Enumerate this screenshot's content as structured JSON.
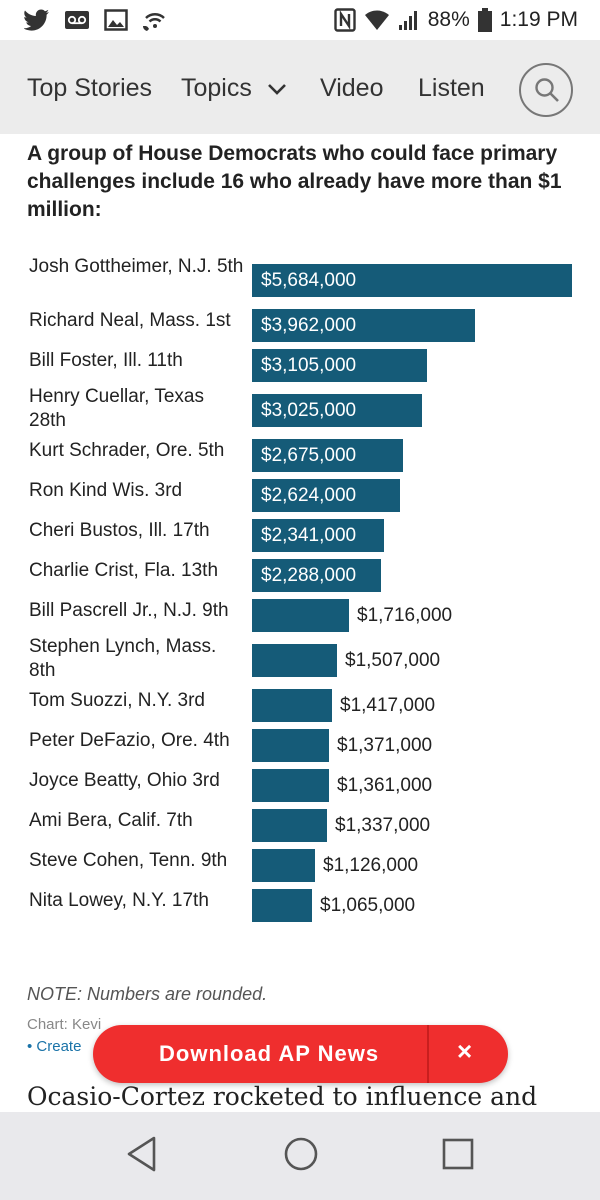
{
  "status_bar": {
    "battery": "88%",
    "time": "1:19 PM"
  },
  "nav": {
    "items": [
      "Top Stories",
      "Topics",
      "Video",
      "Listen"
    ]
  },
  "chart_title": "A group of House Democrats who could face primary challenges include 16 who already have more than $1 million:",
  "chart_data": {
    "type": "bar",
    "orientation": "horizontal",
    "title": "A group of House Democrats who could face primary challenges include 16 who already have more than $1 million:",
    "categories": [
      "Josh Gottheimer, N.J. 5th",
      "Richard Neal, Mass. 1st",
      "Bill Foster, Ill. 11th",
      "Henry Cuellar, Texas 28th",
      "Kurt Schrader, Ore. 5th",
      "Ron Kind Wis. 3rd",
      "Cheri Bustos, Ill. 17th",
      "Charlie Crist, Fla. 13th",
      "Bill Pascrell Jr., N.J. 9th",
      "Stephen Lynch, Mass. 8th",
      "Tom Suozzi, N.Y. 3rd",
      "Peter DeFazio, Ore. 4th",
      "Joyce Beatty, Ohio 3rd",
      "Ami Bera, Calif. 7th",
      "Steve Cohen, Tenn. 9th",
      "Nita Lowey, N.Y. 17th"
    ],
    "values": [
      5684000,
      3962000,
      3105000,
      3025000,
      2675000,
      2624000,
      2341000,
      2288000,
      1716000,
      1507000,
      1417000,
      1371000,
      1361000,
      1337000,
      1126000,
      1065000
    ],
    "value_labels": [
      "$5,684,000",
      "$3,962,000",
      "$3,105,000",
      "$3,025,000",
      "$2,675,000",
      "$2,624,000",
      "$2,341,000",
      "$2,288,000",
      "$1,716,000",
      "$1,507,000",
      "$1,417,000",
      "$1,371,000",
      "$1,361,000",
      "$1,337,000",
      "$1,126,000",
      "$1,065,000"
    ],
    "bar_color": "#155b78",
    "xlim": [
      0,
      5684000
    ],
    "grid": false
  },
  "note": "NOTE: Numbers are rounded.",
  "credit_visible": "Chart: Kevi",
  "created_visible": "• Create",
  "download_banner": {
    "label": "Download AP News",
    "close": "×",
    "color": "#ef2e2e"
  },
  "article_start": "Ocasio-Cortez rocketed to influence and",
  "icons": {
    "status_left": [
      "twitter-icon",
      "voicemail-icon",
      "image-icon",
      "wifi-calling-icon"
    ],
    "status_right": [
      "nfc-icon",
      "wifi-icon",
      "signal-icon",
      "battery-icon"
    ],
    "nav": [
      "chevron-down-icon",
      "search-icon"
    ],
    "system_nav": [
      "back-icon",
      "home-icon",
      "recents-icon"
    ]
  }
}
